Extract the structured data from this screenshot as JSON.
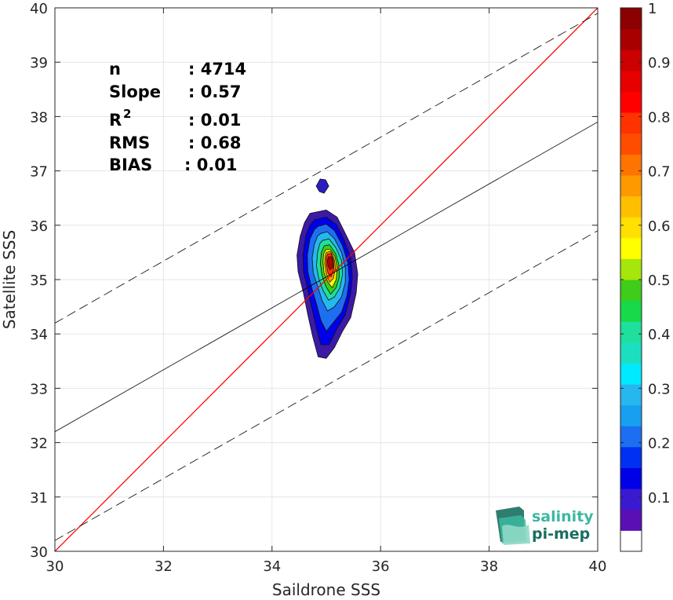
{
  "chart_data": {
    "type": "contour_scatter",
    "xlabel": "Saildrone SSS",
    "ylabel": "Satellite SSS",
    "xlim": [
      30,
      40
    ],
    "ylim": [
      30,
      40
    ],
    "xticks": [
      "30",
      "32",
      "34",
      "36",
      "38",
      "40"
    ],
    "yticks": [
      "30",
      "31",
      "32",
      "33",
      "34",
      "35",
      "36",
      "37",
      "38",
      "39",
      "40"
    ],
    "grid": true,
    "stats": {
      "n_label": "n",
      "n_value": ": 4714",
      "slope_label": "Slope",
      "slope_value": ": 0.57",
      "r2_label": "R",
      "r2_sup": "2",
      "r2_value": ": 0.01",
      "rms_label": "RMS",
      "rms_value": ": 0.68",
      "bias_label": "BIAS",
      "bias_value": ": 0.01"
    },
    "lines": [
      {
        "role": "identity",
        "color": "#ff0000",
        "style": "solid",
        "x": [
          30,
          40
        ],
        "y": [
          30,
          40
        ]
      },
      {
        "role": "regression",
        "color": "#000000",
        "style": "solid",
        "x": [
          30,
          40
        ],
        "y": [
          32.2,
          37.9
        ]
      },
      {
        "role": "upper-bound",
        "color": "#000000",
        "style": "dashed",
        "x": [
          30,
          40
        ],
        "y": [
          34.2,
          39.9
        ]
      },
      {
        "role": "lower-bound",
        "color": "#000000",
        "style": "dashed",
        "x": [
          30,
          40
        ],
        "y": [
          30.2,
          35.9
        ]
      }
    ],
    "density_contours": {
      "outlier_blob": {
        "x": 34.93,
        "y": 36.72
      },
      "levels": [
        {
          "level": 0.05,
          "color": "#3c1aa6",
          "points": [
            [
              34.7,
              36.22
            ],
            [
              35.0,
              36.28
            ],
            [
              35.2,
              36.15
            ],
            [
              35.35,
              35.85
            ],
            [
              35.52,
              35.5
            ],
            [
              35.58,
              35.1
            ],
            [
              35.55,
              34.75
            ],
            [
              35.45,
              34.3
            ],
            [
              35.3,
              34.05
            ],
            [
              35.15,
              33.75
            ],
            [
              35.0,
              33.55
            ],
            [
              34.85,
              33.58
            ],
            [
              34.75,
              33.95
            ],
            [
              34.66,
              34.35
            ],
            [
              34.58,
              34.75
            ],
            [
              34.48,
              35.15
            ],
            [
              34.46,
              35.45
            ],
            [
              34.52,
              35.8
            ],
            [
              34.6,
              36.05
            ]
          ]
        },
        {
          "level": 0.15,
          "color": "#0000e8",
          "points": [
            [
              34.78,
              36.1
            ],
            [
              35.0,
              36.15
            ],
            [
              35.18,
              36.02
            ],
            [
              35.32,
              35.75
            ],
            [
              35.45,
              35.4
            ],
            [
              35.48,
              35.05
            ],
            [
              35.45,
              34.75
            ],
            [
              35.35,
              34.35
            ],
            [
              35.2,
              34.1
            ],
            [
              35.05,
              33.8
            ],
            [
              34.9,
              33.8
            ],
            [
              34.82,
              34.1
            ],
            [
              34.74,
              34.45
            ],
            [
              34.66,
              34.8
            ],
            [
              34.58,
              35.15
            ],
            [
              34.57,
              35.45
            ],
            [
              34.62,
              35.8
            ],
            [
              34.7,
              36.0
            ]
          ]
        },
        {
          "level": 0.25,
          "color": "#1d6ff2",
          "points": [
            [
              34.85,
              35.98
            ],
            [
              35.0,
              36.02
            ],
            [
              35.15,
              35.9
            ],
            [
              35.3,
              35.62
            ],
            [
              35.4,
              35.3
            ],
            [
              35.42,
              35.0
            ],
            [
              35.38,
              34.7
            ],
            [
              35.28,
              34.4
            ],
            [
              35.12,
              34.2
            ],
            [
              35.0,
              34.05
            ],
            [
              34.9,
              34.25
            ],
            [
              34.82,
              34.55
            ],
            [
              34.73,
              34.85
            ],
            [
              34.66,
              35.15
            ],
            [
              34.65,
              35.45
            ],
            [
              34.7,
              35.75
            ],
            [
              34.78,
              35.92
            ]
          ]
        },
        {
          "level": 0.35,
          "color": "#26b7ee",
          "points": [
            [
              34.9,
              35.85
            ],
            [
              35.02,
              35.88
            ],
            [
              35.15,
              35.75
            ],
            [
              35.28,
              35.5
            ],
            [
              35.35,
              35.22
            ],
            [
              35.35,
              34.95
            ],
            [
              35.28,
              34.68
            ],
            [
              35.15,
              34.5
            ],
            [
              35.02,
              34.42
            ],
            [
              34.92,
              34.62
            ],
            [
              34.84,
              34.88
            ],
            [
              34.76,
              35.12
            ],
            [
              34.74,
              35.4
            ],
            [
              34.78,
              35.65
            ],
            [
              34.84,
              35.8
            ]
          ]
        },
        {
          "level": 0.45,
          "color": "#1fdf9c",
          "points": [
            [
              34.93,
              35.72
            ],
            [
              35.05,
              35.75
            ],
            [
              35.18,
              35.58
            ],
            [
              35.28,
              35.35
            ],
            [
              35.3,
              35.1
            ],
            [
              35.25,
              34.85
            ],
            [
              35.15,
              34.68
            ],
            [
              35.04,
              34.62
            ],
            [
              34.94,
              34.8
            ],
            [
              34.86,
              35.02
            ],
            [
              34.82,
              35.25
            ],
            [
              34.84,
              35.5
            ],
            [
              34.88,
              35.66
            ]
          ]
        },
        {
          "level": 0.55,
          "color": "#3fcc1a",
          "points": [
            [
              34.96,
              35.62
            ],
            [
              35.06,
              35.64
            ],
            [
              35.17,
              35.48
            ],
            [
              35.23,
              35.28
            ],
            [
              35.24,
              35.05
            ],
            [
              35.18,
              34.85
            ],
            [
              35.08,
              34.73
            ],
            [
              34.99,
              34.88
            ],
            [
              34.92,
              35.08
            ],
            [
              34.89,
              35.3
            ],
            [
              34.91,
              35.5
            ]
          ]
        },
        {
          "level": 0.65,
          "color": "#ffff00",
          "points": [
            [
              34.99,
              35.55
            ],
            [
              35.08,
              35.55
            ],
            [
              35.16,
              35.42
            ],
            [
              35.2,
              35.22
            ],
            [
              35.18,
              35.0
            ],
            [
              35.11,
              34.85
            ],
            [
              35.03,
              34.95
            ],
            [
              34.96,
              35.12
            ],
            [
              34.94,
              35.32
            ],
            [
              34.95,
              35.47
            ]
          ]
        },
        {
          "level": 0.75,
          "color": "#ff9900",
          "points": [
            [
              35.0,
              35.5
            ],
            [
              35.08,
              35.52
            ],
            [
              35.14,
              35.4
            ],
            [
              35.17,
              35.22
            ],
            [
              35.13,
              35.02
            ],
            [
              35.06,
              34.95
            ],
            [
              35.0,
              35.1
            ],
            [
              34.97,
              35.3
            ],
            [
              34.98,
              35.44
            ]
          ]
        },
        {
          "level": 0.85,
          "color": "#ff3300",
          "points": [
            [
              35.02,
              35.47
            ],
            [
              35.09,
              35.48
            ],
            [
              35.13,
              35.36
            ],
            [
              35.14,
              35.2
            ],
            [
              35.09,
              35.05
            ],
            [
              35.03,
              35.12
            ],
            [
              35.0,
              35.28
            ],
            [
              35.0,
              35.4
            ]
          ]
        },
        {
          "level": 0.95,
          "color": "#b30000",
          "points": [
            [
              35.04,
              35.42
            ],
            [
              35.1,
              35.42
            ],
            [
              35.13,
              35.32
            ],
            [
              35.12,
              35.22
            ],
            [
              35.07,
              35.18
            ],
            [
              35.03,
              35.25
            ],
            [
              35.02,
              35.35
            ]
          ]
        }
      ]
    },
    "colorbar": {
      "range": [
        0,
        1
      ],
      "tick_labels": [
        "0.1",
        "0.2",
        "0.3",
        "0.4",
        "0.5",
        "0.6",
        "0.7",
        "0.8",
        "0.9",
        "1"
      ],
      "colors": [
        "#ffffff",
        "#5a0fb5",
        "#3a1ad0",
        "#0000e8",
        "#0030f0",
        "#1d6ff2",
        "#18a0f0",
        "#26b7ee",
        "#00eaff",
        "#1cdfc0",
        "#1fdf9c",
        "#17d94a",
        "#3fcc1a",
        "#a6e60a",
        "#ffff00",
        "#ffe000",
        "#ffbf00",
        "#ff9900",
        "#ff7300",
        "#ff4d00",
        "#ff3300",
        "#ff0000",
        "#e60000",
        "#cc0000",
        "#a80000",
        "#8b0000"
      ]
    }
  },
  "logo": {
    "line1": "salinity",
    "line2": "pi-mep",
    "color_dark": "#1a6e5f",
    "color_light": "#3cb8a0"
  }
}
